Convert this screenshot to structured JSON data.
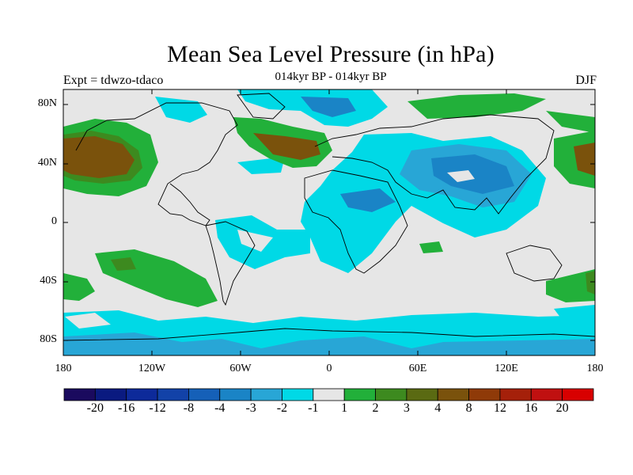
{
  "title": "Mean Sea Level Pressure (in hPa)",
  "subtitle": "014kyr BP - 014kyr BP",
  "experiment_label": "Expt = tdwzo-tdaco",
  "season_label": "DJF",
  "map": {
    "projection": "cylindrical equidistant",
    "lon_range": [
      -180,
      180
    ],
    "lat_range": [
      -90,
      90
    ],
    "y_tick_labels": [
      "80N",
      "40N",
      "0",
      "40S",
      "80S"
    ],
    "x_tick_labels": [
      "180",
      "120W",
      "60W",
      "0",
      "60E",
      "120E",
      "180"
    ],
    "background_color": "#e6e6e6",
    "coastline_color": "#000000"
  },
  "colorbar": {
    "tick_labels": [
      "-20",
      "-16",
      "-12",
      "-8",
      "-4",
      "-3",
      "-2",
      "-1",
      "1",
      "2",
      "3",
      "4",
      "8",
      "12",
      "16",
      "20"
    ],
    "colors": [
      "#1a0a5e",
      "#0a1a80",
      "#0d2a9a",
      "#1242a8",
      "#1560b8",
      "#1a84c6",
      "#28a6d6",
      "#00d9e6",
      "#e6e6e6",
      "#22b03a",
      "#3d8a1f",
      "#5a6a12",
      "#7a520c",
      "#8f3a08",
      "#a5200a",
      "#c01010",
      "#d80000"
    ]
  },
  "anomaly_regions": [
    {
      "name": "north-pacific-high",
      "level": "4",
      "color": "#7a520c"
    },
    {
      "name": "north-atlantic-high",
      "level": "4",
      "color": "#7a520c"
    },
    {
      "name": "south-pacific-high",
      "level": "2",
      "color": "#22b03a"
    },
    {
      "name": "asian-low",
      "level": "-3",
      "color": "#1a84c6"
    },
    {
      "name": "southern-ocean-low",
      "level": "-1",
      "color": "#00d9e6"
    }
  ]
}
